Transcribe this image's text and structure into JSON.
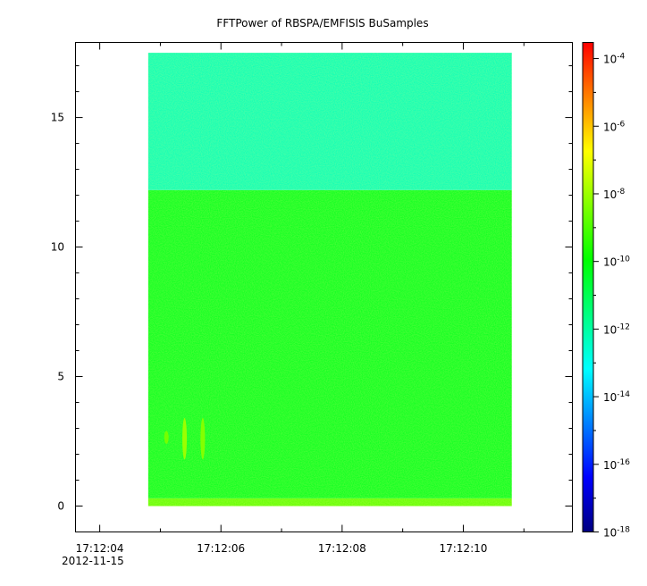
{
  "chart_data": {
    "type": "heatmap",
    "title": "FFTPower of RBSPA/EMFISIS  BuSamples",
    "xlabel": "",
    "ylabel": "",
    "x_date": "2012-11-15",
    "x_ticks": [
      "17:12:04",
      "17:12:06",
      "17:12:08",
      "17:12:10"
    ],
    "x_range": [
      "17:12:03.6",
      "17:12:11.8"
    ],
    "x_data_range": [
      "17:12:04.8",
      "17:12:10.8"
    ],
    "y_ticks": [
      0,
      5,
      10,
      15
    ],
    "ylim": [
      -1.0,
      17.9
    ],
    "y_data_range": [
      0,
      17.5
    ],
    "colorbar": {
      "scale": "log",
      "range": [
        1e-18,
        0.0003
      ],
      "tick_base": "10",
      "tick_exponents": [
        "-4",
        "-6",
        "-8",
        "-10",
        "-12",
        "-14",
        "-16",
        "-18"
      ],
      "colormap": [
        "#000080",
        "#0000ff",
        "#0080ff",
        "#00ffff",
        "#00ff80",
        "#00ff00",
        "#80ff00",
        "#ffff00",
        "#ff8000",
        "#ff0000"
      ]
    },
    "bands": [
      {
        "y_from": 0,
        "y_to": 0.3,
        "level_log10": -8.8
      },
      {
        "y_from": 0.3,
        "y_to": 12.2,
        "level_log10": -10.3
      },
      {
        "y_from": 12.2,
        "y_to": 17.5,
        "level_log10": -12.3
      }
    ],
    "features": [
      {
        "x": "17:12:05.1",
        "y_from": 2.4,
        "y_to": 2.9,
        "level_log10": -8.5
      },
      {
        "x": "17:12:05.4",
        "y_from": 1.8,
        "y_to": 3.4,
        "level_log10": -8.0
      },
      {
        "x": "17:12:05.7",
        "y_from": 1.8,
        "y_to": 3.4,
        "level_log10": -8.3
      }
    ]
  }
}
